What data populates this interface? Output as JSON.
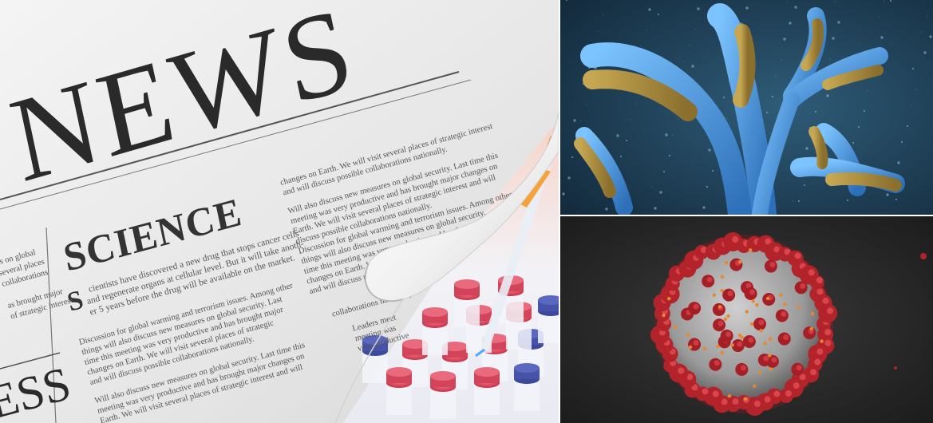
{
  "newspaper": {
    "masthead": "NEWS",
    "section_title": "SCIENCE",
    "lower_partial_heading": "ESS",
    "lead_lines": [
      "cientists have discovered a new drug that stops cancer cells",
      "and regenerate organs at cellular level. But it will take anoth-",
      "er 5 years before the drug will be available on the market."
    ],
    "lead_dropcap": "S",
    "body_lines": [
      "Discussion for global warming and terrorism issues. Among other",
      "things will also discuss new measures on global security. Last",
      "time this meeting was very productive and has brought major",
      "changes on Earth. We will visit several places of strategic",
      "and will discuss possible collaborations nationally.",
      "Will also discuss new measures on global security. Last time this",
      "meeting was very productive and has brought major changes on",
      "Earth. We will visit several places of strategic interest and will"
    ],
    "right_column_lines": [
      "changes on Earth. We will visit several places of strategic interest",
      "and will discuss possible collaborations nationally.",
      "Will also discuss new measures on global security. Last time this",
      "meeting was very productive and has brought major changes on",
      "Earth. We will visit several places of strategic interest and will",
      "discuss possible collaborations nationally.",
      "Discussion for global warming and terrorism issues. Among other",
      "things will also discuss new measures on global security.",
      "time this meeting was very productive and has brought",
      "changes on Earth. We will visit several places of",
      "and will discuss possible collaborations.",
      "collaborations nationally.",
      "Leaders meet",
      "meeting was",
      "very productive"
    ],
    "left_column_lines": [
      "es on global",
      "several places",
      "collaborations",
      "as brought major",
      "of strategic interest"
    ]
  },
  "colors": {
    "paper": "#ececec",
    "ink": "#2a2a2a",
    "antibody_bg": "#1c3c54",
    "antibody_blue": "#3f86c8",
    "antibody_gold": "#a88a3c",
    "virus_bg": "#222222",
    "virus_red": "#b3232a",
    "virus_grey": "#a8a8a8"
  },
  "icons": [
    "newspaper-image",
    "pipette-image",
    "vials-image",
    "antibody-image",
    "coronavirus-image"
  ]
}
